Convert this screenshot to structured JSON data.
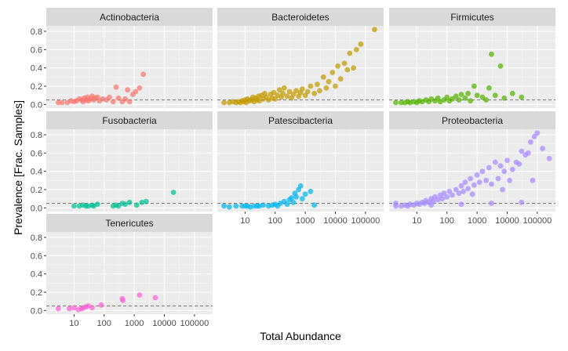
{
  "chart_data": {
    "type": "scatter",
    "x_scale": "log10",
    "xlabel": "Total Abundance",
    "ylabel": "Prevalence [Frac. Samples]",
    "x_ticks": [
      10,
      100,
      1000,
      10000,
      100000
    ],
    "x_tick_labels": [
      "10",
      "100",
      "1000",
      "10000",
      "100000"
    ],
    "y_ticks": [
      0.0,
      0.2,
      0.4,
      0.6,
      0.8
    ],
    "y_tick_labels": [
      "0.0",
      "0.2",
      "0.4",
      "0.6",
      "0.8"
    ],
    "xlim": [
      1.2,
      400000
    ],
    "ylim": [
      -0.04,
      0.86
    ],
    "threshold_line": 0.05,
    "grid": true,
    "legend": "none",
    "panels": [
      {
        "name": "Actinobacteria",
        "color": "#F8766D",
        "points": [
          [
            3,
            0.02
          ],
          [
            4,
            0.02
          ],
          [
            6,
            0.02
          ],
          [
            8,
            0.04
          ],
          [
            10,
            0.03
          ],
          [
            12,
            0.04
          ],
          [
            15,
            0.06
          ],
          [
            18,
            0.05
          ],
          [
            20,
            0.03
          ],
          [
            22,
            0.07
          ],
          [
            25,
            0.05
          ],
          [
            28,
            0.08
          ],
          [
            30,
            0.04
          ],
          [
            35,
            0.06
          ],
          [
            40,
            0.09
          ],
          [
            45,
            0.05
          ],
          [
            50,
            0.07
          ],
          [
            60,
            0.08
          ],
          [
            70,
            0.04
          ],
          [
            90,
            0.06
          ],
          [
            120,
            0.05
          ],
          [
            150,
            0.08
          ],
          [
            200,
            0.03
          ],
          [
            250,
            0.19
          ],
          [
            300,
            0.07
          ],
          [
            400,
            0.03
          ],
          [
            500,
            0.06
          ],
          [
            600,
            0.16
          ],
          [
            700,
            0.03
          ],
          [
            900,
            0.11
          ],
          [
            1100,
            0.14
          ],
          [
            1500,
            0.18
          ],
          [
            2000,
            0.33
          ]
        ]
      },
      {
        "name": "Bacteroidetes",
        "color": "#C49A00",
        "points": [
          [
            2,
            0.02
          ],
          [
            3,
            0.02
          ],
          [
            4,
            0.03
          ],
          [
            5,
            0.02
          ],
          [
            6,
            0.03
          ],
          [
            7,
            0.02
          ],
          [
            8,
            0.04
          ],
          [
            9,
            0.03
          ],
          [
            10,
            0.05
          ],
          [
            11,
            0.02
          ],
          [
            12,
            0.06
          ],
          [
            14,
            0.04
          ],
          [
            16,
            0.05
          ],
          [
            18,
            0.08
          ],
          [
            20,
            0.03
          ],
          [
            22,
            0.07
          ],
          [
            25,
            0.05
          ],
          [
            28,
            0.09
          ],
          [
            30,
            0.04
          ],
          [
            35,
            0.1
          ],
          [
            40,
            0.06
          ],
          [
            45,
            0.12
          ],
          [
            50,
            0.08
          ],
          [
            60,
            0.05
          ],
          [
            70,
            0.11
          ],
          [
            80,
            0.07
          ],
          [
            90,
            0.13
          ],
          [
            100,
            0.06
          ],
          [
            120,
            0.1
          ],
          [
            140,
            0.16
          ],
          [
            160,
            0.08
          ],
          [
            180,
            0.12
          ],
          [
            200,
            0.18
          ],
          [
            250,
            0.09
          ],
          [
            300,
            0.14
          ],
          [
            350,
            0.07
          ],
          [
            400,
            0.11
          ],
          [
            500,
            0.15
          ],
          [
            600,
            0.09
          ],
          [
            700,
            0.13
          ],
          [
            800,
            0.17
          ],
          [
            1000,
            0.1
          ],
          [
            1200,
            0.14
          ],
          [
            1500,
            0.2
          ],
          [
            2000,
            0.12
          ],
          [
            2500,
            0.22
          ],
          [
            3000,
            0.15
          ],
          [
            4000,
            0.3
          ],
          [
            5000,
            0.18
          ],
          [
            6000,
            0.25
          ],
          [
            8000,
            0.35
          ],
          [
            10000,
            0.2
          ],
          [
            12000,
            0.42
          ],
          [
            15000,
            0.28
          ],
          [
            20000,
            0.45
          ],
          [
            25000,
            0.38
          ],
          [
            30000,
            0.56
          ],
          [
            40000,
            0.4
          ],
          [
            50000,
            0.6
          ],
          [
            70000,
            0.66
          ],
          [
            200000,
            0.82
          ]
        ]
      },
      {
        "name": "Firmicutes",
        "color": "#53B400",
        "points": [
          [
            2,
            0.02
          ],
          [
            3,
            0.02
          ],
          [
            4,
            0.02
          ],
          [
            5,
            0.03
          ],
          [
            6,
            0.02
          ],
          [
            8,
            0.03
          ],
          [
            10,
            0.02
          ],
          [
            12,
            0.04
          ],
          [
            15,
            0.03
          ],
          [
            20,
            0.05
          ],
          [
            25,
            0.03
          ],
          [
            30,
            0.06
          ],
          [
            40,
            0.04
          ],
          [
            50,
            0.07
          ],
          [
            60,
            0.03
          ],
          [
            80,
            0.05
          ],
          [
            100,
            0.08
          ],
          [
            120,
            0.04
          ],
          [
            150,
            0.06
          ],
          [
            200,
            0.09
          ],
          [
            250,
            0.05
          ],
          [
            300,
            0.11
          ],
          [
            400,
            0.07
          ],
          [
            500,
            0.12
          ],
          [
            600,
            0.04
          ],
          [
            800,
            0.2
          ],
          [
            1000,
            0.1
          ],
          [
            1500,
            0.08
          ],
          [
            2000,
            0.05
          ],
          [
            2500,
            0.18
          ],
          [
            3000,
            0.55
          ],
          [
            4000,
            0.1
          ],
          [
            6000,
            0.42
          ],
          [
            8000,
            0.07
          ],
          [
            15000,
            0.12
          ],
          [
            30000,
            0.08
          ]
        ]
      },
      {
        "name": "Fusobacteria",
        "color": "#00C094",
        "points": [
          [
            10,
            0.02
          ],
          [
            15,
            0.02
          ],
          [
            20,
            0.03
          ],
          [
            25,
            0.02
          ],
          [
            30,
            0.02
          ],
          [
            40,
            0.03
          ],
          [
            45,
            0.02
          ],
          [
            60,
            0.04
          ],
          [
            200,
            0.02
          ],
          [
            250,
            0.03
          ],
          [
            300,
            0.02
          ],
          [
            400,
            0.05
          ],
          [
            500,
            0.04
          ],
          [
            700,
            0.06
          ],
          [
            1200,
            0.03
          ],
          [
            1800,
            0.06
          ],
          [
            2500,
            0.07
          ],
          [
            20000,
            0.17
          ]
        ]
      },
      {
        "name": "Patescibacteria",
        "color": "#00B6EB",
        "points": [
          [
            2,
            0.02
          ],
          [
            3,
            0.01
          ],
          [
            5,
            0.02
          ],
          [
            8,
            0.02
          ],
          [
            10,
            0.02
          ],
          [
            12,
            0.02
          ],
          [
            15,
            0.01
          ],
          [
            20,
            0.02
          ],
          [
            25,
            0.02
          ],
          [
            30,
            0.02
          ],
          [
            40,
            0.03
          ],
          [
            60,
            0.02
          ],
          [
            80,
            0.03
          ],
          [
            100,
            0.04
          ],
          [
            120,
            0.02
          ],
          [
            150,
            0.05
          ],
          [
            200,
            0.07
          ],
          [
            250,
            0.04
          ],
          [
            300,
            0.09
          ],
          [
            350,
            0.11
          ],
          [
            400,
            0.06
          ],
          [
            450,
            0.16
          ],
          [
            500,
            0.12
          ],
          [
            600,
            0.2
          ],
          [
            700,
            0.24
          ],
          [
            800,
            0.1
          ],
          [
            1000,
            0.15
          ],
          [
            1500,
            0.18
          ],
          [
            2000,
            0.03
          ]
        ]
      },
      {
        "name": "Proteobacteria",
        "color": "#A58AFF",
        "points": [
          [
            2,
            0.02
          ],
          [
            3,
            0.02
          ],
          [
            4,
            0.03
          ],
          [
            5,
            0.02
          ],
          [
            6,
            0.04
          ],
          [
            8,
            0.03
          ],
          [
            10,
            0.05
          ],
          [
            12,
            0.04
          ],
          [
            15,
            0.06
          ],
          [
            18,
            0.05
          ],
          [
            20,
            0.08
          ],
          [
            25,
            0.06
          ],
          [
            30,
            0.1
          ],
          [
            35,
            0.07
          ],
          [
            40,
            0.12
          ],
          [
            50,
            0.09
          ],
          [
            60,
            0.14
          ],
          [
            70,
            0.1
          ],
          [
            80,
            0.16
          ],
          [
            100,
            0.12
          ],
          [
            120,
            0.18
          ],
          [
            150,
            0.14
          ],
          [
            200,
            0.2
          ],
          [
            250,
            0.16
          ],
          [
            300,
            0.24
          ],
          [
            350,
            0.18
          ],
          [
            400,
            0.28
          ],
          [
            500,
            0.21
          ],
          [
            600,
            0.32
          ],
          [
            800,
            0.25
          ],
          [
            1000,
            0.36
          ],
          [
            1200,
            0.28
          ],
          [
            1500,
            0.4
          ],
          [
            2000,
            0.3
          ],
          [
            2500,
            0.44
          ],
          [
            3000,
            0.26
          ],
          [
            4000,
            0.5
          ],
          [
            5000,
            0.32
          ],
          [
            6000,
            0.46
          ],
          [
            8000,
            0.4
          ],
          [
            10000,
            0.52
          ],
          [
            12000,
            0.3
          ],
          [
            15000,
            0.42
          ],
          [
            20000,
            0.5
          ],
          [
            25000,
            0.48
          ],
          [
            30000,
            0.62
          ],
          [
            40000,
            0.58
          ],
          [
            50000,
            0.6
          ],
          [
            60000,
            0.72
          ],
          [
            80000,
            0.78
          ],
          [
            100000,
            0.82
          ],
          [
            150000,
            0.65
          ],
          [
            250000,
            0.54
          ],
          [
            2,
            0.05
          ],
          [
            30,
            0.03
          ],
          [
            300,
            0.04
          ],
          [
            3000,
            0.05
          ],
          [
            30000,
            0.06
          ],
          [
            700,
            0.15
          ],
          [
            7000,
            0.2
          ],
          [
            70000,
            0.3
          ]
        ]
      },
      {
        "name": "Tenericutes",
        "color": "#FB61D7",
        "points": [
          [
            3,
            0.02
          ],
          [
            7,
            0.02
          ],
          [
            10,
            0.03
          ],
          [
            14,
            0.01
          ],
          [
            18,
            0.02
          ],
          [
            20,
            0.03
          ],
          [
            25,
            0.04
          ],
          [
            30,
            0.05
          ],
          [
            40,
            0.03
          ],
          [
            80,
            0.06
          ],
          [
            400,
            0.13
          ],
          [
            420,
            0.11
          ],
          [
            1500,
            0.17
          ],
          [
            5000,
            0.14
          ]
        ]
      }
    ]
  }
}
